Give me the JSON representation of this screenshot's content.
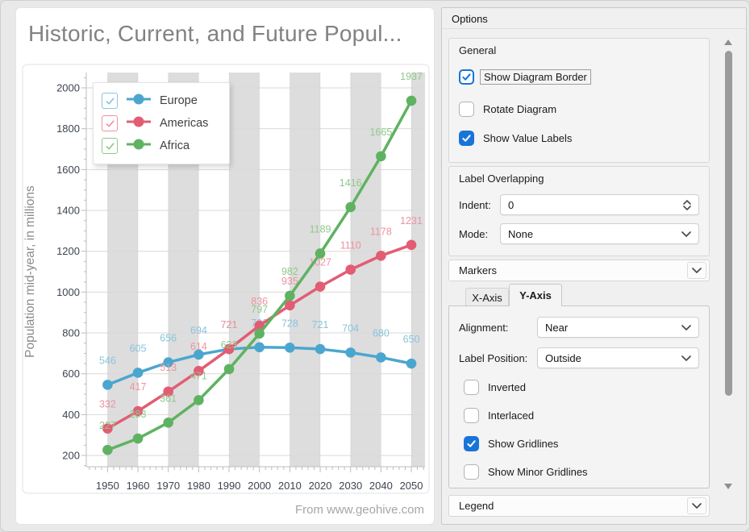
{
  "chart_card": {
    "title": "Historic, Current, and Future Popul...",
    "source_note": "From www.geohive.com"
  },
  "chart_data": {
    "type": "line",
    "title": "Historic, Current, and Future Popul...",
    "xlabel": "",
    "ylabel": "Population mid-year, in millions",
    "x": [
      1950,
      1960,
      1970,
      1980,
      1990,
      2000,
      2010,
      2020,
      2030,
      2040,
      2050
    ],
    "series": [
      {
        "name": "Europe",
        "color": "#4ba6cf",
        "label_color": "#8ac4de",
        "values": [
          546,
          605,
          656,
          694,
          721,
          730,
          728,
          721,
          704,
          680,
          650
        ]
      },
      {
        "name": "Americas",
        "color": "#e25d73",
        "label_color": "#ee93a0",
        "values": [
          332,
          417,
          513,
          614,
          721,
          836,
          935,
          1027,
          1110,
          1178,
          1231
        ]
      },
      {
        "name": "Africa",
        "color": "#5fb261",
        "label_color": "#90c98c",
        "values": [
          227,
          283,
          361,
          471,
          623,
          797,
          982,
          1189,
          1416,
          1665,
          1937
        ]
      }
    ],
    "y_ticks": [
      200,
      400,
      600,
      800,
      1000,
      1200,
      1400,
      1600,
      1800,
      2000
    ],
    "x_range": [
      1943,
      2054.5
    ],
    "y_range": [
      145,
      2075
    ],
    "interlaced_bands": [
      [
        1950,
        1960
      ],
      [
        1970,
        1980
      ],
      [
        1990,
        2000
      ],
      [
        2010,
        2020
      ],
      [
        2030,
        2040
      ],
      [
        2050,
        2054.5
      ]
    ],
    "grid": true,
    "legend_position": "top-left",
    "annotation": "From www.geohive.com",
    "colors": {
      "band": "#dddddd",
      "grid": "#d9d9d9",
      "axis": "#bdbdbd",
      "tick_text": "#3d4450",
      "axis_title": "#8a8a8a"
    }
  },
  "options_panel": {
    "title": "Options",
    "accent_color": "#1874d8",
    "general": {
      "caption": "General",
      "items": [
        {
          "label": "Show Diagram Border",
          "checked": true,
          "focused": true
        },
        {
          "label": "Rotate Diagram",
          "checked": false,
          "focused": false
        },
        {
          "label": "Show Value Labels",
          "checked": true,
          "focused": false
        }
      ]
    },
    "label_overlapping": {
      "caption": "Label Overlapping",
      "indent_label": "Indent:",
      "indent_value": "0",
      "mode_label": "Mode:",
      "mode_value": "None"
    },
    "markers": {
      "caption": "Markers"
    },
    "axis_tabs": {
      "tab_x": "X-Axis",
      "tab_y": "Y-Axis",
      "active": "Y-Axis",
      "alignment_label": "Alignment:",
      "alignment_value": "Near",
      "label_position_label": "Label Position:",
      "label_position_value": "Outside",
      "items": [
        {
          "label": "Inverted",
          "checked": false
        },
        {
          "label": "Interlaced",
          "checked": false
        },
        {
          "label": "Show Gridlines",
          "checked": true
        },
        {
          "label": "Show Minor Gridlines",
          "checked": false
        }
      ]
    },
    "legend_group": {
      "caption": "Legend"
    }
  }
}
